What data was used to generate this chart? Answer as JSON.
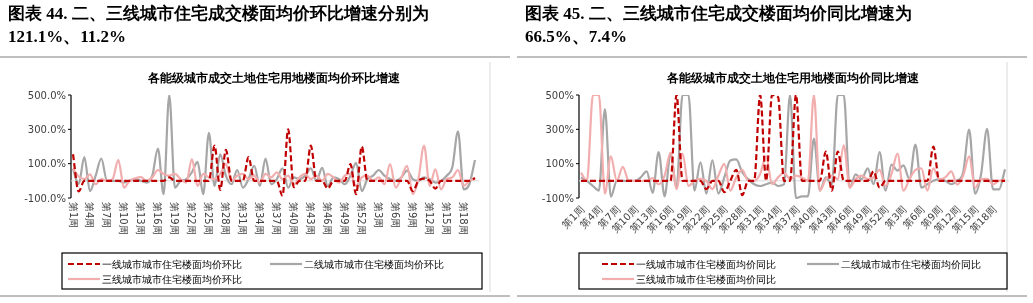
{
  "chart_data": [
    {
      "type": "line",
      "title": "图表 44. 二、三线城市住宅成交楼面均价环比增速分别为121.1%、11.2%",
      "subtitle": "各能级城市成交土地住宅用地楼面均价环比增速",
      "categories": [
        "第1周",
        null,
        null,
        "第4周",
        null,
        null,
        "第7周",
        null,
        null,
        "第10周",
        null,
        null,
        "第13周",
        null,
        null,
        "第16周",
        null,
        null,
        "第19周",
        null,
        null,
        "第22周",
        null,
        null,
        "第25周",
        null,
        null,
        "第28周",
        null,
        null,
        "第31周",
        null,
        null,
        "第34周",
        null,
        null,
        "第37周",
        null,
        null,
        "第40周",
        null,
        null,
        "第43周",
        null,
        null,
        "第46周",
        null,
        null,
        "第49周",
        null,
        null,
        "第52周",
        null,
        null,
        "第3周",
        null,
        null,
        "第6周",
        null,
        null,
        "第9周",
        null,
        null,
        "第12周",
        null,
        null,
        "第15周",
        null,
        null,
        "第18周",
        null,
        null
      ],
      "series": [
        {
          "name": "一线城市城市住宅楼面均价环比",
          "color": "#c00000",
          "line_style": "dashed",
          "values": [
            155,
            -62,
            0,
            0,
            0,
            0,
            0,
            0,
            0,
            0,
            0,
            0,
            0,
            0,
            0,
            0,
            0,
            20,
            0,
            0,
            0,
            0,
            0,
            0,
            0,
            205,
            -53,
            180,
            0,
            0,
            0,
            138,
            0,
            0,
            0,
            0,
            0,
            -87,
            300,
            -37,
            0,
            0,
            205,
            0,
            0,
            -45,
            0,
            0,
            0,
            97,
            -78,
            200,
            0,
            0,
            0,
            0,
            0,
            0,
            0,
            0,
            -60,
            0,
            13,
            0,
            -45,
            0,
            0,
            0,
            0,
            0,
            0,
            17
          ]
        },
        {
          "name": "二线城市城市住宅楼面均价环比",
          "color": "#a6a6a6",
          "line_style": "solid",
          "values": [
            70,
            -20,
            138,
            -60,
            30,
            130,
            0,
            0,
            0,
            -10,
            0,
            10,
            0,
            -10,
            30,
            188,
            -78,
            500,
            -40,
            0,
            10,
            50,
            110,
            -78,
            280,
            -30,
            155,
            30,
            -20,
            63,
            -40,
            10,
            88,
            -30,
            130,
            -20,
            10,
            72,
            -40,
            20,
            10,
            30,
            72,
            0,
            75,
            -30,
            20,
            10,
            -20,
            30,
            105,
            -60,
            10,
            30,
            63,
            30,
            10,
            0,
            20,
            60,
            10,
            0,
            20,
            10,
            -10,
            0,
            30,
            80,
            288,
            -50,
            -20,
            121.1
          ]
        },
        {
          "name": "三线城市城市住宅楼面均价环比",
          "color": "#f2aeae",
          "line_style": "solid",
          "values": [
            72,
            25,
            10,
            38,
            -20,
            10,
            0,
            10,
            122,
            -40,
            0,
            15,
            22,
            0,
            20,
            63,
            40,
            30,
            40,
            10,
            -10,
            127,
            -30,
            40,
            20,
            10,
            40,
            97,
            0,
            30,
            40,
            10,
            30,
            -10,
            40,
            20,
            50,
            10,
            30,
            -20,
            20,
            40,
            10,
            30,
            0,
            40,
            20,
            -10,
            30,
            40,
            -30,
            20,
            30,
            0,
            20,
            -20,
            97,
            -40,
            20,
            88,
            -78,
            10,
            205,
            -30,
            67,
            -50,
            10,
            20,
            63,
            -30,
            0,
            11.2
          ]
        }
      ],
      "ylim": [
        -100,
        500
      ],
      "yticks": [
        {
          "value": -100,
          "label": "-100.0%"
        },
        {
          "value": 100,
          "label": "100.0%"
        },
        {
          "value": 300,
          "label": "300.0%"
        },
        {
          "value": 500,
          "label": "500.0%"
        }
      ],
      "legend": "bottom",
      "grid": false,
      "marker": "none"
    },
    {
      "type": "line",
      "title": "图表 45. 二、三线城市住宅成交楼面均价同比增速为66.5%、7.4%",
      "subtitle": "各能级城市成交土地住宅用地楼面均价同比增速",
      "categories": [
        "第1周",
        null,
        null,
        "第4周",
        null,
        null,
        "第7周",
        null,
        null,
        "第10周",
        null,
        null,
        "第13周",
        null,
        null,
        "第16周",
        null,
        null,
        "第19周",
        null,
        null,
        "第22周",
        null,
        null,
        "第25周",
        null,
        null,
        "第28周",
        null,
        null,
        "第31周",
        null,
        null,
        "第34周",
        null,
        null,
        "第37周",
        null,
        null,
        "第40周",
        null,
        null,
        "第43周",
        null,
        null,
        "第46周",
        null,
        null,
        "第49周",
        null,
        null,
        "第52周",
        null,
        null,
        "第3周",
        null,
        null,
        "第6周",
        null,
        null,
        "第9周",
        null,
        null,
        "第12周",
        null,
        null,
        "第15周",
        null,
        null,
        "第18周",
        null,
        null
      ],
      "series": [
        {
          "name": "一线城市城市住宅楼面均价同比",
          "color": "#c00000",
          "line_style": "dashed",
          "values": [
            0,
            0,
            0,
            0,
            0,
            0,
            0,
            0,
            0,
            0,
            0,
            0,
            0,
            0,
            0,
            0,
            500,
            0,
            0,
            0,
            0,
            -48,
            0,
            0,
            -66,
            0,
            64,
            -83,
            0,
            0,
            500,
            0,
            500,
            488,
            0,
            0,
            500,
            0,
            0,
            0,
            0,
            171,
            -57,
            171,
            0,
            0,
            0,
            0,
            0,
            55,
            -40,
            0,
            0,
            0,
            0,
            0,
            0,
            0,
            0,
            199,
            0,
            0,
            0,
            0,
            0,
            0,
            0,
            0,
            0,
            0,
            0,
            0
          ]
        },
        {
          "name": "二线城市城市住宅楼面均价同比",
          "color": "#a6a6a6",
          "line_style": "solid",
          "values": [
            20,
            0,
            -30,
            -57,
            418,
            -92,
            0,
            0,
            0,
            0,
            20,
            55,
            -70,
            168,
            -90,
            159,
            -40,
            500,
            500,
            -57,
            107,
            -74,
            119,
            -74,
            20,
            119,
            125,
            50,
            10,
            -20,
            -30,
            -20,
            -10,
            -30,
            -20,
            500,
            -100,
            -90,
            -90,
            246,
            -57,
            20,
            -20,
            500,
            500,
            -40,
            38,
            10,
            73,
            -20,
            168,
            -57,
            95,
            60,
            90,
            10,
            211,
            -40,
            -20,
            0,
            10,
            0,
            -20,
            0,
            50,
            298,
            -74,
            40,
            303,
            -50,
            -50,
            66.5
          ]
        },
        {
          "name": "三线城市城市住宅楼面均价同比",
          "color": "#f2aeae",
          "line_style": "solid",
          "values": [
            47,
            0,
            500,
            500,
            -74,
            142,
            0,
            81,
            0,
            0,
            0,
            0,
            16,
            -20,
            30,
            164,
            -48,
            159,
            -30,
            0,
            12,
            0,
            -48,
            30,
            99,
            -57,
            20,
            64,
            0,
            0,
            40,
            142,
            -20,
            20,
            47,
            10,
            30,
            20,
            0,
            500,
            -57,
            10,
            30,
            10,
            206,
            -40,
            10,
            30,
            10,
            20,
            64,
            -30,
            40,
            159,
            -57,
            10,
            64,
            73,
            -57,
            73,
            10,
            20,
            55,
            -22,
            30,
            142,
            -40,
            10,
            12,
            -20,
            0,
            7.4
          ]
        }
      ],
      "ylim": [
        -100,
        500
      ],
      "yticks": [
        {
          "value": -100,
          "label": "-100%"
        },
        {
          "value": 100,
          "label": "100%"
        },
        {
          "value": 300,
          "label": "300%"
        },
        {
          "value": 500,
          "label": "500%"
        }
      ],
      "legend": "bottom",
      "grid": false,
      "marker": "none"
    }
  ]
}
